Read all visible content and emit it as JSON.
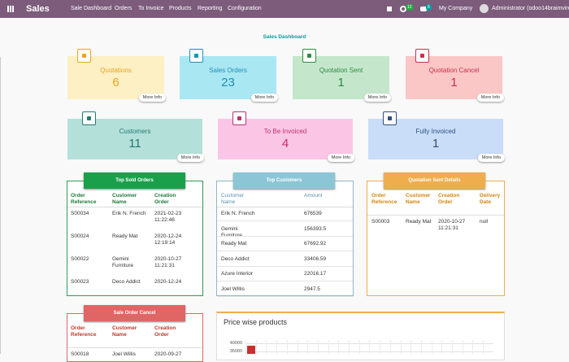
{
  "navbar": {
    "app": "Sales",
    "menu": [
      "Sale Dashboard",
      "Orders",
      "To Invoice",
      "Products",
      "Reporting",
      "Configuration"
    ],
    "activity_badge": "12",
    "message_badge": "6",
    "company": "My Company",
    "user": "Administrator (odoo14braimvire)"
  },
  "title": "Sales Dashboard",
  "cards": [
    {
      "label": "Quotations",
      "value": "6",
      "more": "More Info"
    },
    {
      "label": "Sales Orders",
      "value": "23",
      "more": "More Info"
    },
    {
      "label": "Quotation Sent",
      "value": "1",
      "more": "More Info"
    },
    {
      "label": "Quotation Cancel",
      "value": "1",
      "more": "More Info"
    },
    {
      "label": "Customers",
      "value": "11",
      "more": "More Info"
    },
    {
      "label": "To Be Invoiced",
      "value": "4",
      "more": "More Info"
    },
    {
      "label": "Fully Invoiced",
      "value": "1",
      "more": "More Info"
    }
  ],
  "tables": [
    {
      "title": "Top Sold Orders",
      "headers": [
        "Order Reference",
        "Customer Name",
        "Creation Order"
      ],
      "rows": [
        [
          "S00034",
          "Erik N. French",
          "2021-02-23 11:22:46"
        ],
        [
          "S00024",
          "Ready Mat",
          "2020-12-24 12:19:14"
        ],
        [
          "S00022",
          "Gemini Furniture",
          "2020-10-27 11:21:31"
        ],
        [
          "S00023",
          "Deco Addict",
          "2020-12-24"
        ]
      ]
    },
    {
      "title": "Top Customers",
      "headers": [
        "Customer Name",
        "Amount"
      ],
      "rows": [
        [
          "Erik N. French",
          "676539"
        ],
        [
          "Gemini Furniture",
          "156393.5"
        ],
        [
          "Ready Mat",
          "67692.92"
        ],
        [
          "Deco Addict",
          "33406.59"
        ],
        [
          "Azure Interior",
          "22016.17"
        ],
        [
          "Joel Willis",
          "2947.5"
        ]
      ]
    },
    {
      "title": "Quotation Sent Details",
      "headers": [
        "Order Reference",
        "Customer Name",
        "Creation Order",
        "Delivery Date"
      ],
      "rows": [
        [
          "S00003",
          "Ready Mat",
          "2020-10-27 11:21:31",
          "null"
        ]
      ]
    },
    {
      "title": "Sale Order Cancel",
      "headers": [
        "Order Reference",
        "Customer Name",
        "Creation Order"
      ],
      "rows": [
        [
          "S00018",
          "Joel Willis",
          "2020-09-27"
        ]
      ]
    }
  ],
  "chart": {
    "title": "Price wise products",
    "yticks": [
      40000,
      35000
    ],
    "values": [
      38500
    ]
  }
}
